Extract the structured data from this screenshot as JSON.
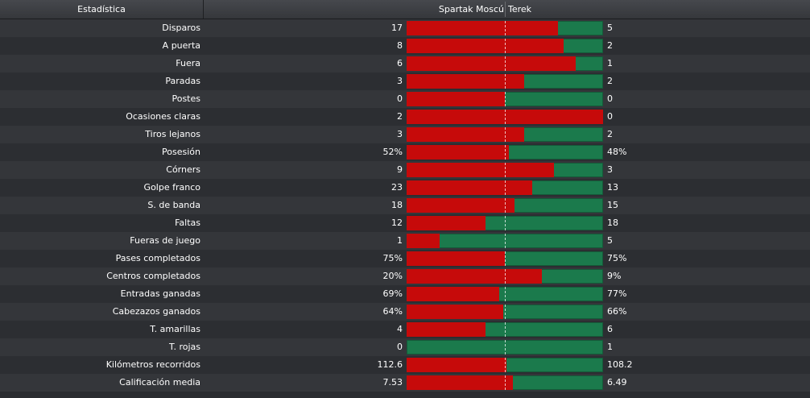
{
  "header": {
    "stat_label": "Estadística",
    "home_team": "Spartak Moscú",
    "away_team": "Terek"
  },
  "colors": {
    "home": "#c60a0a",
    "away": "#1b7a4c"
  },
  "stats": [
    {
      "label": "Disparos",
      "home": "17",
      "away": "5",
      "home_share": 0.77
    },
    {
      "label": "A puerta",
      "home": "8",
      "away": "2",
      "home_share": 0.8
    },
    {
      "label": "Fuera",
      "home": "6",
      "away": "1",
      "home_share": 0.86
    },
    {
      "label": "Paradas",
      "home": "3",
      "away": "2",
      "home_share": 0.6
    },
    {
      "label": "Postes",
      "home": "0",
      "away": "0",
      "home_share": 0.5
    },
    {
      "label": "Ocasiones claras",
      "home": "2",
      "away": "0",
      "home_share": 1.0
    },
    {
      "label": "Tiros lejanos",
      "home": "3",
      "away": "2",
      "home_share": 0.6
    },
    {
      "label": "Posesión",
      "home": "52%",
      "away": "48%",
      "home_share": 0.52
    },
    {
      "label": "Córners",
      "home": "9",
      "away": "3",
      "home_share": 0.75
    },
    {
      "label": "Golpe franco",
      "home": "23",
      "away": "13",
      "home_share": 0.64
    },
    {
      "label": "S. de banda",
      "home": "18",
      "away": "15",
      "home_share": 0.55
    },
    {
      "label": "Faltas",
      "home": "12",
      "away": "18",
      "home_share": 0.4
    },
    {
      "label": "Fueras de juego",
      "home": "1",
      "away": "5",
      "home_share": 0.17
    },
    {
      "label": "Pases completados",
      "home": "75%",
      "away": "75%",
      "home_share": 0.5
    },
    {
      "label": "Centros completados",
      "home": "20%",
      "away": "9%",
      "home_share": 0.69
    },
    {
      "label": "Entradas ganadas",
      "home": "69%",
      "away": "77%",
      "home_share": 0.47
    },
    {
      "label": "Cabezazos ganados",
      "home": "64%",
      "away": "66%",
      "home_share": 0.49
    },
    {
      "label": "T. amarillas",
      "home": "4",
      "away": "6",
      "home_share": 0.4
    },
    {
      "label": "T. rojas",
      "home": "0",
      "away": "1",
      "home_share": 0.0
    },
    {
      "label": "Kilómetros recorridos",
      "home": "112.6",
      "away": "108.2",
      "home_share": 0.51
    },
    {
      "label": "Calificación media",
      "home": "7.53",
      "away": "6.49",
      "home_share": 0.54
    }
  ]
}
